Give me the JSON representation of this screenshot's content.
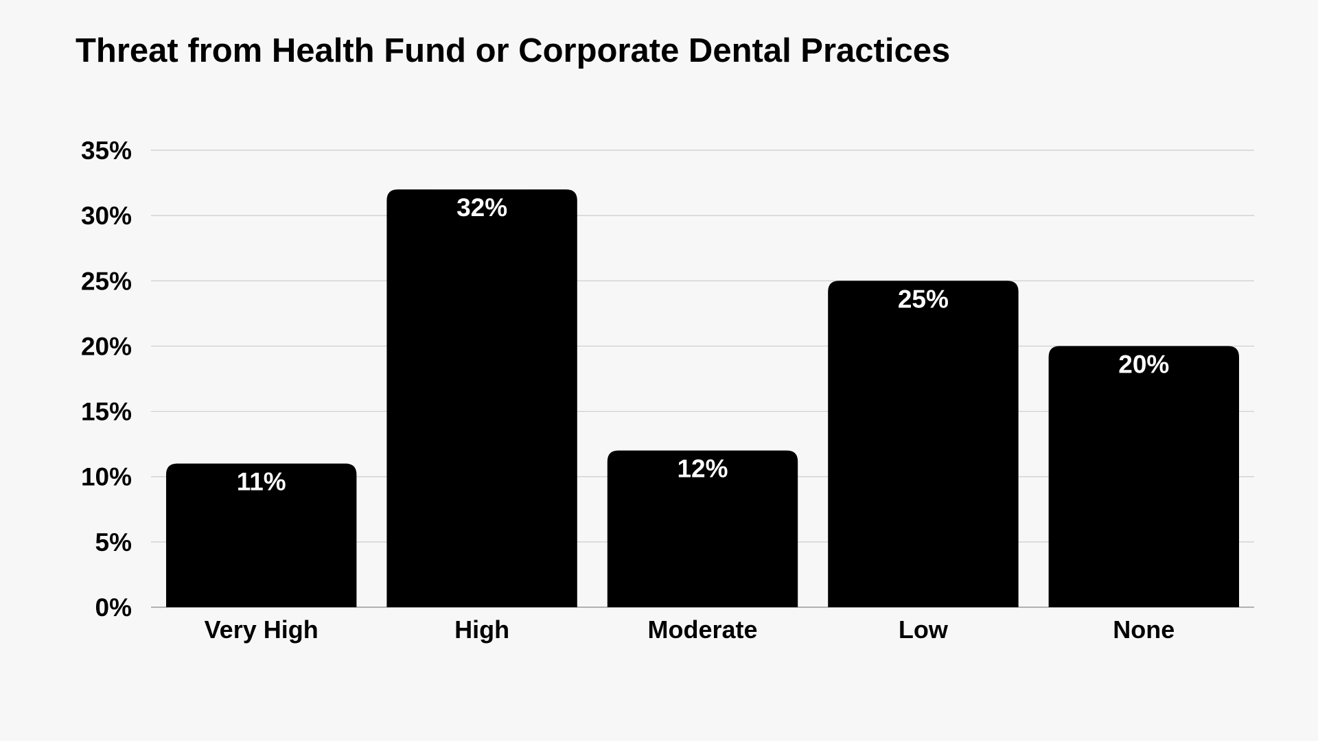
{
  "chart_data": {
    "type": "bar",
    "title": "Threat from Health Fund or Corporate Dental Practices",
    "xlabel": "",
    "ylabel": "",
    "categories": [
      "Very High",
      "High",
      "Moderate",
      "Low",
      "None"
    ],
    "values": [
      11,
      32,
      12,
      25,
      20
    ],
    "value_labels": [
      "11%",
      "32%",
      "12%",
      "25%",
      "20%"
    ],
    "ylim": [
      0,
      35
    ],
    "yticks": [
      0,
      5,
      10,
      15,
      20,
      25,
      30,
      35
    ],
    "ytick_labels": [
      "0%",
      "5%",
      "10%",
      "15%",
      "20%",
      "25%",
      "30%",
      "35%"
    ],
    "grid": true,
    "legend": "none",
    "bar_color": "#000000",
    "value_label_color": "#ffffff",
    "grid_color": "#cccccc",
    "background": "#f7f7f7"
  }
}
